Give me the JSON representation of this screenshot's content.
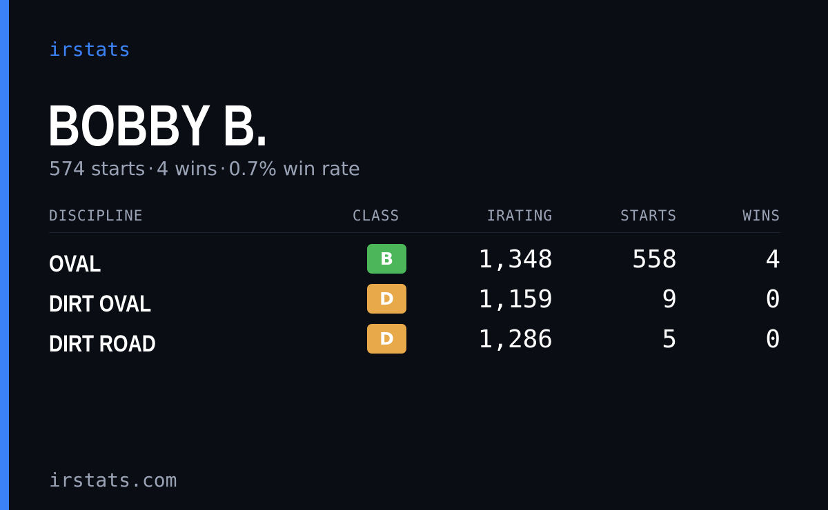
{
  "brand": "irstats",
  "driver": {
    "name": "BOBBY B.",
    "starts_summary": "574 starts",
    "wins_summary": "4 wins",
    "win_rate_summary": "0.7% win rate",
    "separator": "·"
  },
  "table": {
    "headers": {
      "discipline": "DISCIPLINE",
      "class": "CLASS",
      "irating": "IRATING",
      "starts": "STARTS",
      "wins": "WINS"
    },
    "rows": [
      {
        "discipline": "OVAL",
        "class": "B",
        "irating": "1,348",
        "starts": "558",
        "wins": "4"
      },
      {
        "discipline": "DIRT OVAL",
        "class": "D",
        "irating": "1,159",
        "starts": "9",
        "wins": "0"
      },
      {
        "discipline": "DIRT ROAD",
        "class": "D",
        "irating": "1,286",
        "starts": "5",
        "wins": "0"
      }
    ]
  },
  "class_colors": {
    "B": "#4cb65a",
    "D": "#e7a94a"
  },
  "accent_color": "#3b82f6",
  "footer": "irstats.com"
}
